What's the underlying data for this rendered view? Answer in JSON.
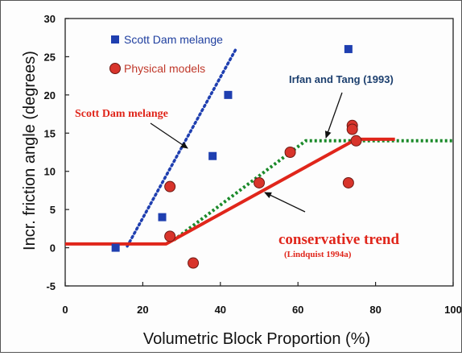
{
  "chart_data": {
    "type": "scatter",
    "xlabel": "Volumetric Block Proportion (%)",
    "ylabel": "Incr. friction angle (degrees)",
    "xlim": [
      0,
      100
    ],
    "ylim": [
      -5,
      30
    ],
    "x_ticks": [
      0,
      20,
      40,
      60,
      80,
      100
    ],
    "y_ticks": [
      -5,
      0,
      5,
      10,
      15,
      20,
      25,
      30
    ],
    "x_tick_labels": [
      "0",
      "20",
      "40",
      "60",
      "80",
      "100"
    ],
    "y_tick_labels": [
      "-5",
      "0",
      "5",
      "10",
      "15",
      "20",
      "25",
      "30"
    ],
    "grid": false,
    "legend_position": "top-left",
    "series": [
      {
        "name": "Scott Dam melange",
        "kind": "points",
        "marker": "square",
        "color": "#1f3fb0",
        "points": [
          [
            13,
            0
          ],
          [
            25,
            4
          ],
          [
            38,
            12
          ],
          [
            42,
            20
          ],
          [
            73,
            26
          ]
        ]
      },
      {
        "name": "Physical models",
        "kind": "points",
        "marker": "circle",
        "color": "#d8342b",
        "points": [
          [
            27,
            8
          ],
          [
            27,
            1.5
          ],
          [
            33,
            -2
          ],
          [
            50,
            8.5
          ],
          [
            58,
            12.5
          ],
          [
            73,
            8.5
          ],
          [
            74,
            16
          ],
          [
            74,
            15.5
          ],
          [
            75,
            14
          ]
        ]
      },
      {
        "name": "Scott Dam melange fit",
        "kind": "line",
        "style": "dotted",
        "color": "#1f3fb0",
        "points": [
          [
            16,
            0.2
          ],
          [
            44,
            26
          ]
        ]
      },
      {
        "name": "Irfan and Tang (1993)",
        "kind": "line",
        "style": "dashed",
        "color": "#1b8a2a",
        "points": [
          [
            28,
            1
          ],
          [
            62,
            14
          ],
          [
            100,
            14
          ]
        ]
      },
      {
        "name": "conservative trend",
        "kind": "line",
        "style": "solid",
        "color": "#e0261b",
        "points": [
          [
            0,
            0.5
          ],
          [
            26,
            0.5
          ],
          [
            75,
            14.2
          ],
          [
            85,
            14.2
          ]
        ]
      }
    ],
    "annotations": [
      {
        "text": "Scott Dam melange",
        "target": [
          32,
          13
        ],
        "color": "#e0261b"
      },
      {
        "text": "Irfan and Tang (1993)",
        "target": [
          66,
          14
        ],
        "color": "#1c3f6e"
      },
      {
        "text": "conservative trend",
        "target": [
          51,
          8
        ],
        "color": "#e0261b"
      },
      {
        "text": "(Lindquist 1994a)",
        "color": "#e0261b"
      }
    ],
    "legend": [
      {
        "label": "Scott Dam melange",
        "marker": "square",
        "color": "#1f3fb0"
      },
      {
        "label": "Physical models",
        "marker": "circle",
        "color": "#d8342b"
      }
    ]
  }
}
